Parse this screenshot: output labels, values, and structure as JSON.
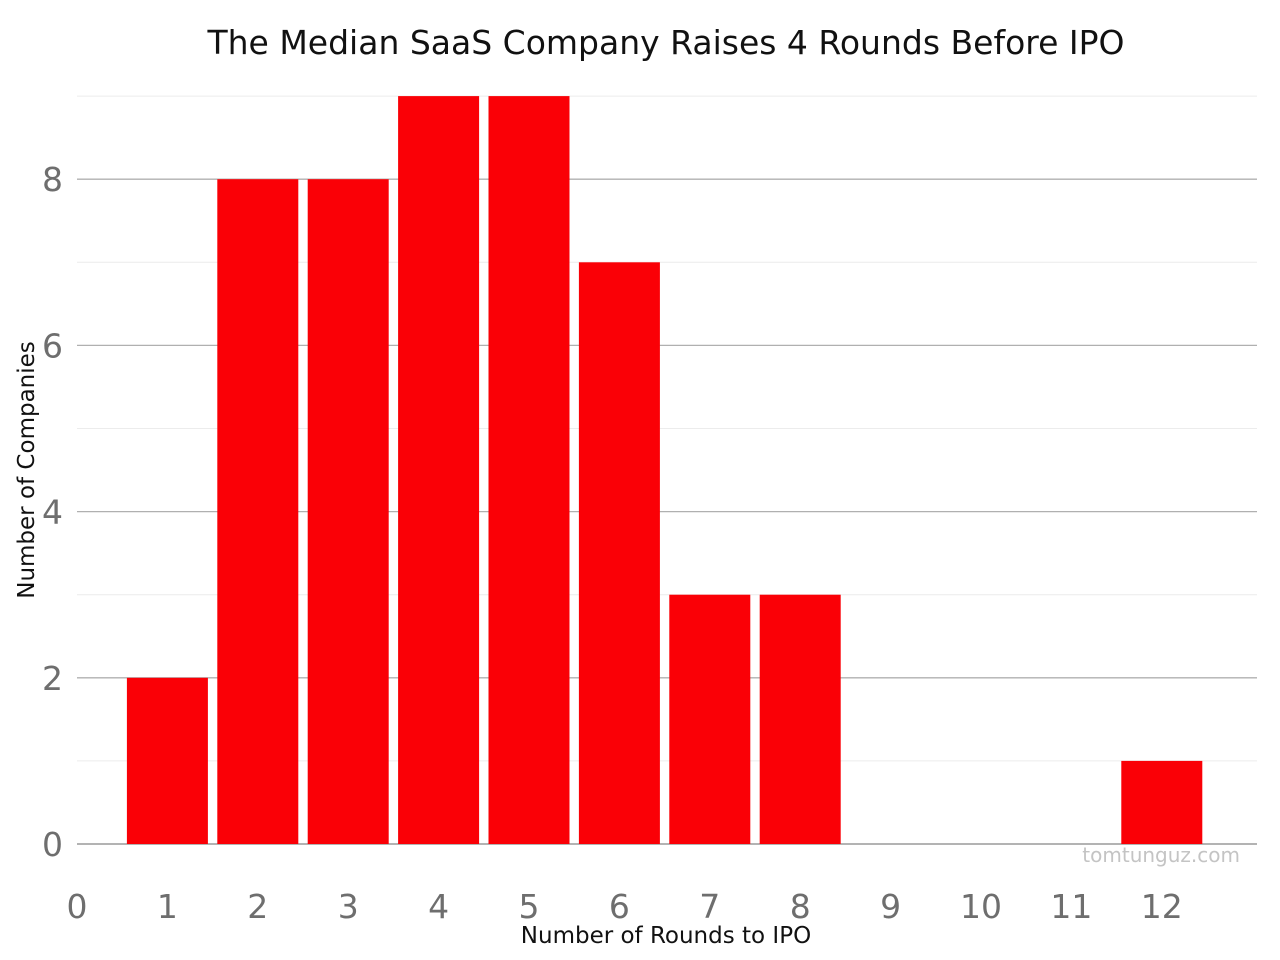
{
  "chart_data": {
    "type": "bar",
    "title": "The Median SaaS Company Raises 4 Rounds Before IPO",
    "xlabel": "Number of Rounds to IPO",
    "ylabel": "Number of Companies",
    "x_ticks": [
      "0",
      "1",
      "2",
      "3",
      "4",
      "5",
      "6",
      "7",
      "8",
      "9",
      "10",
      "11",
      "12"
    ],
    "y_ticks": [
      "0",
      "2",
      "4",
      "6",
      "8"
    ],
    "xlim": [
      0,
      13
    ],
    "ylim": [
      0,
      9
    ],
    "series": [
      {
        "x": [
          1,
          2,
          3,
          4,
          5,
          6,
          7,
          8,
          12
        ],
        "values": [
          2,
          8,
          8,
          9,
          9,
          7,
          3,
          3,
          1
        ],
        "color": "#fa0006"
      }
    ],
    "grid": true,
    "legend": "none",
    "watermark": "tomtunguz.com"
  }
}
